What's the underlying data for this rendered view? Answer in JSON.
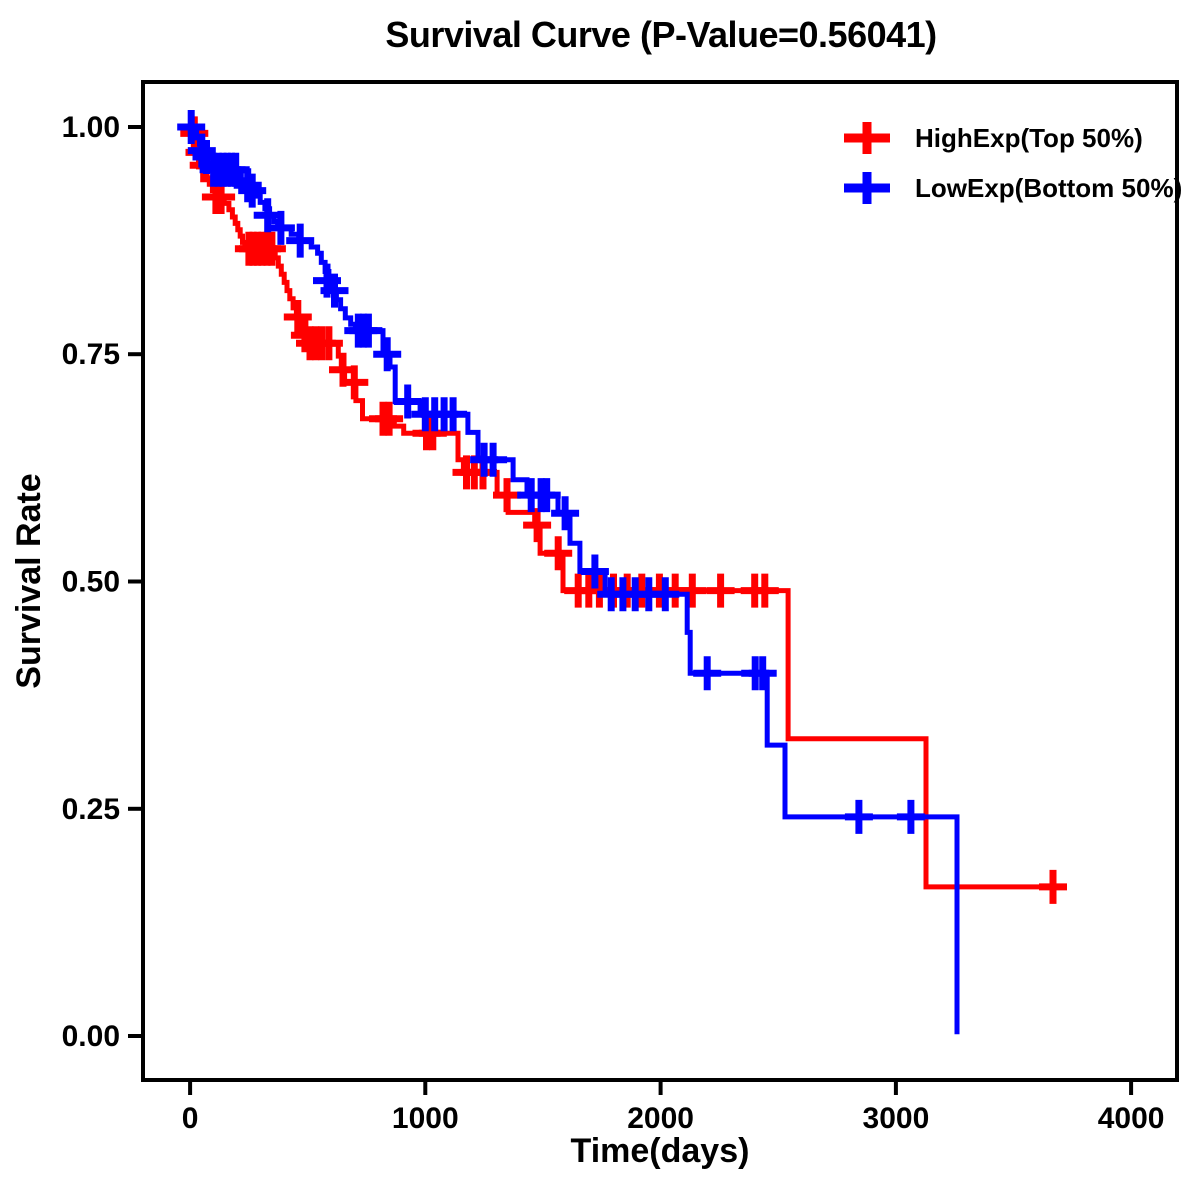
{
  "chart_data": {
    "type": "line",
    "subtype": "kaplan-meier-step",
    "title": "Survival Curve (P-Value=0.56041)",
    "p_value": "0.56041",
    "xlabel": "Time(days)",
    "ylabel": "Survival Rate",
    "x_axis": {
      "ticks": [
        0,
        1000,
        2000,
        3000,
        4000
      ],
      "tick_labels": [
        "0",
        "1000",
        "2000",
        "3000",
        "4000"
      ],
      "range": [
        0,
        4000
      ]
    },
    "y_axis": {
      "ticks": [
        0,
        0.25,
        0.5,
        0.75,
        1
      ],
      "tick_labels": [
        "0.00",
        "0.25",
        "0.50",
        "0.75",
        "1.00"
      ],
      "range": [
        0,
        1
      ]
    },
    "legend": {
      "position": "top-right"
    },
    "grid": "off",
    "series": [
      {
        "id": "highexp",
        "name": "HighExp(Top 50%)",
        "color": "#ff0000",
        "points": [
          [
            0,
            1
          ],
          [
            14,
            0.993
          ],
          [
            22,
            0.986
          ],
          [
            30,
            0.979
          ],
          [
            38,
            0.972
          ],
          [
            46,
            0.965
          ],
          [
            54,
            0.958
          ],
          [
            62,
            0.951
          ],
          [
            72,
            0.944
          ],
          [
            82,
            0.937
          ],
          [
            95,
            0.93
          ],
          [
            120,
            0.923
          ],
          [
            145,
            0.916
          ],
          [
            165,
            0.909
          ],
          [
            180,
            0.901
          ],
          [
            192,
            0.894
          ],
          [
            203,
            0.887
          ],
          [
            213,
            0.88
          ],
          [
            223,
            0.873
          ],
          [
            233,
            0.866
          ],
          [
            362,
            0.856
          ],
          [
            375,
            0.847
          ],
          [
            388,
            0.838
          ],
          [
            400,
            0.829
          ],
          [
            412,
            0.82
          ],
          [
            424,
            0.811
          ],
          [
            438,
            0.801
          ],
          [
            452,
            0.791
          ],
          [
            467,
            0.781
          ],
          [
            482,
            0.771
          ],
          [
            497,
            0.762
          ],
          [
            630,
            0.748
          ],
          [
            643,
            0.733
          ],
          [
            657,
            0.719
          ],
          [
            705,
            0.699
          ],
          [
            733,
            0.679
          ],
          [
            868,
            0.671
          ],
          [
            908,
            0.663
          ],
          [
            1139,
            0.634
          ],
          [
            1162,
            0.62
          ],
          [
            1305,
            0.595
          ],
          [
            1352,
            0.576
          ],
          [
            1465,
            0.562
          ],
          [
            1488,
            0.531
          ],
          [
            1585,
            0.49
          ],
          [
            2542,
            0.327
          ],
          [
            3128,
            0.164
          ],
          [
            3711,
            0.164
          ]
        ],
        "censors": [
          [
            18,
            0.993
          ],
          [
            40,
            0.972
          ],
          [
            58,
            0.958
          ],
          [
            110,
            0.923
          ],
          [
            132,
            0.923
          ],
          [
            250,
            0.866
          ],
          [
            268,
            0.866
          ],
          [
            287,
            0.866
          ],
          [
            306,
            0.866
          ],
          [
            327,
            0.866
          ],
          [
            348,
            0.866
          ],
          [
            458,
            0.791
          ],
          [
            488,
            0.771
          ],
          [
            510,
            0.762
          ],
          [
            534,
            0.762
          ],
          [
            560,
            0.762
          ],
          [
            590,
            0.762
          ],
          [
            650,
            0.733
          ],
          [
            698,
            0.719
          ],
          [
            820,
            0.679
          ],
          [
            846,
            0.679
          ],
          [
            1005,
            0.663
          ],
          [
            1032,
            0.663
          ],
          [
            1175,
            0.62
          ],
          [
            1208,
            0.62
          ],
          [
            1245,
            0.62
          ],
          [
            1347,
            0.595
          ],
          [
            1475,
            0.562
          ],
          [
            1565,
            0.531
          ],
          [
            1650,
            0.49
          ],
          [
            1695,
            0.49
          ],
          [
            1740,
            0.49
          ],
          [
            1800,
            0.49
          ],
          [
            1858,
            0.49
          ],
          [
            1920,
            0.49
          ],
          [
            1995,
            0.49
          ],
          [
            2062,
            0.49
          ],
          [
            2135,
            0.49
          ],
          [
            2255,
            0.49
          ],
          [
            2400,
            0.49
          ],
          [
            2443,
            0.49
          ],
          [
            3668,
            0.164
          ]
        ]
      },
      {
        "id": "lowexp",
        "name": "LowExp(Bottom 50%)",
        "color": "#0000ff",
        "points": [
          [
            0,
            1
          ],
          [
            16,
            0.994
          ],
          [
            28,
            0.988
          ],
          [
            40,
            0.981
          ],
          [
            52,
            0.974
          ],
          [
            64,
            0.967
          ],
          [
            76,
            0.96
          ],
          [
            88,
            0.953
          ],
          [
            198,
            0.948
          ],
          [
            218,
            0.942
          ],
          [
            238,
            0.936
          ],
          [
            258,
            0.93
          ],
          [
            278,
            0.924
          ],
          [
            298,
            0.917
          ],
          [
            318,
            0.91
          ],
          [
            338,
            0.903
          ],
          [
            355,
            0.896
          ],
          [
            372,
            0.889
          ],
          [
            430,
            0.882
          ],
          [
            462,
            0.875
          ],
          [
            515,
            0.868
          ],
          [
            542,
            0.861
          ],
          [
            558,
            0.851
          ],
          [
            574,
            0.841
          ],
          [
            590,
            0.831
          ],
          [
            605,
            0.82
          ],
          [
            622,
            0.81
          ],
          [
            640,
            0.8
          ],
          [
            660,
            0.79
          ],
          [
            683,
            0.783
          ],
          [
            703,
            0.776
          ],
          [
            820,
            0.75
          ],
          [
            850,
            0.736
          ],
          [
            872,
            0.698
          ],
          [
            978,
            0.684
          ],
          [
            1181,
            0.664
          ],
          [
            1224,
            0.634
          ],
          [
            1373,
            0.612
          ],
          [
            1432,
            0.595
          ],
          [
            1564,
            0.575
          ],
          [
            1615,
            0.542
          ],
          [
            1657,
            0.511
          ],
          [
            1764,
            0.486
          ],
          [
            2113,
            0.444
          ],
          [
            2126,
            0.399
          ],
          [
            2453,
            0.32
          ],
          [
            2529,
            0.241
          ],
          [
            3260,
            0.002
          ]
        ],
        "censors": [
          [
            5,
            1
          ],
          [
            50,
            0.974
          ],
          [
            70,
            0.967
          ],
          [
            100,
            0.953
          ],
          [
            120,
            0.953
          ],
          [
            140,
            0.953
          ],
          [
            158,
            0.953
          ],
          [
            176,
            0.953
          ],
          [
            194,
            0.953
          ],
          [
            245,
            0.936
          ],
          [
            264,
            0.93
          ],
          [
            330,
            0.903
          ],
          [
            386,
            0.889
          ],
          [
            468,
            0.875
          ],
          [
            582,
            0.831
          ],
          [
            614,
            0.82
          ],
          [
            715,
            0.776
          ],
          [
            737,
            0.776
          ],
          [
            758,
            0.776
          ],
          [
            838,
            0.75
          ],
          [
            925,
            0.698
          ],
          [
            1000,
            0.684
          ],
          [
            1040,
            0.684
          ],
          [
            1080,
            0.684
          ],
          [
            1118,
            0.684
          ],
          [
            1250,
            0.634
          ],
          [
            1288,
            0.634
          ],
          [
            1450,
            0.595
          ],
          [
            1492,
            0.595
          ],
          [
            1516,
            0.595
          ],
          [
            1594,
            0.575
          ],
          [
            1721,
            0.511
          ],
          [
            1790,
            0.486
          ],
          [
            1840,
            0.486
          ],
          [
            1892,
            0.486
          ],
          [
            1950,
            0.486
          ],
          [
            2020,
            0.486
          ],
          [
            2198,
            0.399
          ],
          [
            2402,
            0.399
          ],
          [
            2434,
            0.399
          ],
          [
            2843,
            0.241
          ],
          [
            3064,
            0.241
          ]
        ]
      }
    ]
  }
}
